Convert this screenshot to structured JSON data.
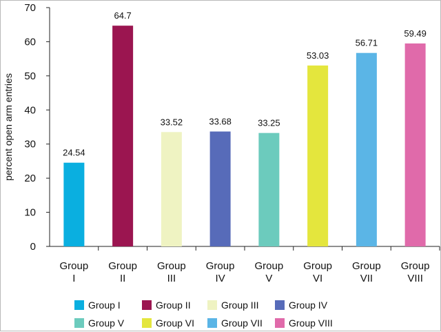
{
  "chart_data": {
    "type": "bar",
    "title": "",
    "xlabel": "",
    "ylabel": "percent open arm entries",
    "ylim": [
      0,
      70
    ],
    "yticks": [
      "0",
      "10",
      "20",
      "30",
      "40",
      "50",
      "60",
      "70"
    ],
    "grid": false,
    "legend_position": "bottom",
    "categories": [
      [
        "Group",
        "I"
      ],
      [
        "Group",
        "II"
      ],
      [
        "Group",
        "III"
      ],
      [
        "Group",
        "IV"
      ],
      [
        "Group",
        "V"
      ],
      [
        "Group",
        "VI"
      ],
      [
        "Group",
        "VII"
      ],
      [
        "Group",
        "VIII"
      ]
    ],
    "values": [
      24.54,
      64.7,
      33.52,
      33.68,
      33.25,
      53.03,
      56.71,
      59.49
    ],
    "data_labels": [
      "24.54",
      "64.7",
      "33.52",
      "33.68",
      "33.25",
      "53.03",
      "56.71",
      "59.49"
    ],
    "legend": [
      "Group I",
      "Group II",
      "Group III",
      "Group IV",
      "Group V",
      "Group VI",
      "Group VII",
      "Group VIII"
    ],
    "colors": [
      "#0aafe0",
      "#9b1550",
      "#eff3c2",
      "#576bb9",
      "#6ccbbd",
      "#e4e63d",
      "#5bb5e6",
      "#e06aaa"
    ]
  }
}
